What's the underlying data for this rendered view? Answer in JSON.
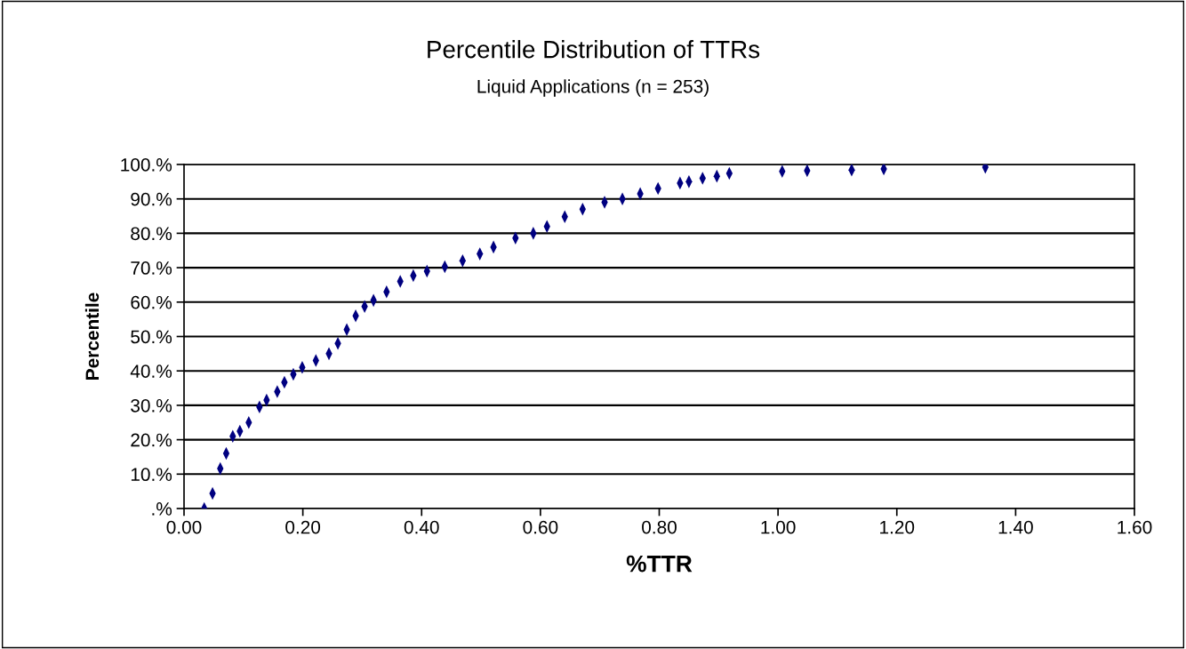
{
  "chart_data": {
    "type": "scatter",
    "title": "Percentile Distribution of TTRs",
    "subtitle": "Liquid Applications (n = 253)",
    "xlabel": "%TTR",
    "ylabel": "Percentile",
    "x": [
      0.034,
      0.048,
      0.061,
      0.071,
      0.082,
      0.094,
      0.109,
      0.127,
      0.139,
      0.157,
      0.169,
      0.184,
      0.199,
      0.222,
      0.244,
      0.259,
      0.274,
      0.289,
      0.304,
      0.319,
      0.341,
      0.364,
      0.386,
      0.409,
      0.439,
      0.469,
      0.498,
      0.521,
      0.558,
      0.588,
      0.611,
      0.641,
      0.671,
      0.708,
      0.738,
      0.768,
      0.798,
      0.835,
      0.85,
      0.873,
      0.897,
      0.918,
      1.007,
      1.049,
      1.124,
      1.178,
      1.349
    ],
    "series": [
      {
        "color": "#000080",
        "values": [
          0,
          4.4,
          11.6,
          16,
          21,
          22.5,
          25,
          29.5,
          31.5,
          34,
          36.7,
          39,
          41,
          43,
          45,
          48,
          52,
          56,
          58.7,
          60.5,
          63,
          66,
          67.7,
          69,
          70.3,
          72,
          74,
          76,
          78.6,
          80,
          82,
          84.8,
          87,
          89,
          90,
          91.5,
          93,
          94.6,
          95,
          96,
          96.6,
          97.4,
          98,
          98.2,
          98.4,
          98.7,
          99.2
        ]
      }
    ],
    "xlim": [
      0,
      1.6
    ],
    "xticks": [
      {
        "value": 0,
        "label": "0.00"
      },
      {
        "value": 0.2,
        "label": "0.20"
      },
      {
        "value": 0.4,
        "label": "0.40"
      },
      {
        "value": 0.6,
        "label": "0.60"
      },
      {
        "value": 0.8,
        "label": "0.80"
      },
      {
        "value": 1.0,
        "label": "1.00"
      },
      {
        "value": 1.2,
        "label": "1.20"
      },
      {
        "value": 1.4,
        "label": "1.40"
      },
      {
        "value": 1.6,
        "label": "1.60"
      }
    ],
    "ylim": [
      0,
      100
    ],
    "yticks": [
      {
        "value": 0,
        "label": ".%"
      },
      {
        "value": 10,
        "label": "10.%"
      },
      {
        "value": 20,
        "label": "20.%"
      },
      {
        "value": 30,
        "label": "30.%"
      },
      {
        "value": 40,
        "label": "40.%"
      },
      {
        "value": 50,
        "label": "50.%"
      },
      {
        "value": 60,
        "label": "60.%"
      },
      {
        "value": 70,
        "label": "70.%"
      },
      {
        "value": 80,
        "label": "80.%"
      },
      {
        "value": 90,
        "label": "90.%"
      },
      {
        "value": 100,
        "label": "100.%"
      }
    ],
    "grid": "y",
    "legend": false,
    "marker": "diamond"
  }
}
